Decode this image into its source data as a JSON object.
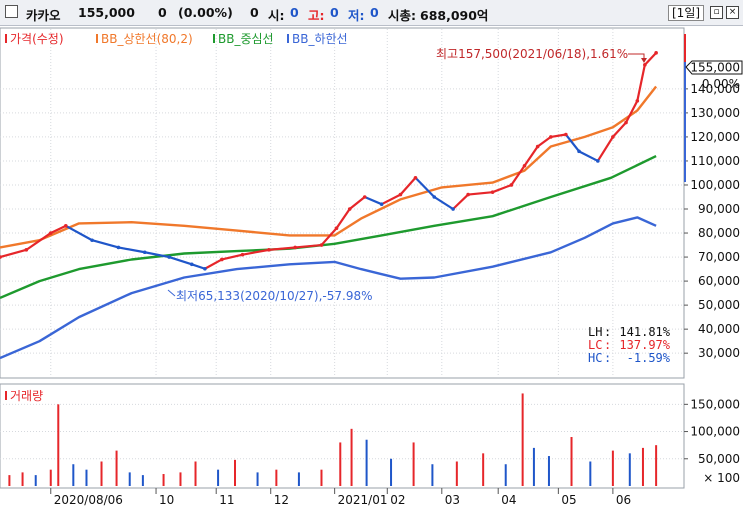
{
  "header": {
    "name": "카카오",
    "price": "155,000",
    "change": "0",
    "change_pct": "(0.00%)",
    "volume_label": "0",
    "open_label": "시:",
    "open_value": "0",
    "high_label": "고:",
    "high_value": "0",
    "low_label": "저:",
    "low_value": "0",
    "mktcap_label": "시총:",
    "mktcap_value": "688,090억",
    "period": "[1일]"
  },
  "legend": {
    "price": "가격(수정)",
    "upper": "BB_상한선(80,2)",
    "middle": "BB_중심선",
    "lower": "BB_하한선",
    "volume": "거래량"
  },
  "annotations": {
    "max": "최고157,500(2021/06/18),1.61%",
    "min": "최저65,133(2020/10/27),-57.98%",
    "current_price": "155,000",
    "current_pct": "0.00%",
    "stats": [
      {
        "label": "LH",
        "value": "141.81%"
      },
      {
        "label": "LC",
        "value": "137.97%"
      },
      {
        "label": "HC",
        "value": "-1.59%"
      }
    ]
  },
  "colors": {
    "up": "#e6262a",
    "down": "#1f56c9",
    "upper_band": "#f0782b",
    "middle_band": "#1e9a2e",
    "lower_band": "#3a66d6",
    "current_marker": "#1f56c9"
  },
  "chart_data": [
    {
      "type": "line",
      "title": "카카오",
      "y_scale": "linear",
      "ylim": [
        23000,
        162000
      ],
      "yticks": [
        30000,
        40000,
        50000,
        60000,
        70000,
        80000,
        90000,
        100000,
        110000,
        120000,
        130000,
        140000
      ],
      "ytick_labels": [
        "30,000",
        "40,000",
        "50,000",
        "60,000",
        "70,000",
        "80,000",
        "90,000",
        "100,000",
        "110,000",
        "120,000",
        "130,000",
        "140,000"
      ],
      "x_labels": [
        {
          "label": "2020/08/06",
          "date": "2020-08-06"
        },
        {
          "label": "10",
          "date": "2020-10-01"
        },
        {
          "label": "11",
          "date": "2020-11-02"
        },
        {
          "label": "12",
          "date": "2020-12-01"
        },
        {
          "label": "2021/01",
          "date": "2021-01-04"
        },
        {
          "label": "02",
          "date": "2021-02-01"
        },
        {
          "label": "03",
          "date": "2021-03-02"
        },
        {
          "label": "04",
          "date": "2021-04-01"
        },
        {
          "label": "05",
          "date": "2021-05-03"
        },
        {
          "label": "06",
          "date": "2021-06-01"
        }
      ],
      "x_range": [
        "2020-07-10",
        "2021-06-25"
      ],
      "series": [
        {
          "name": "가격(수정)",
          "points": [
            [
              "2020-07-10",
              70000
            ],
            [
              "2020-07-24",
              73000
            ],
            [
              "2020-08-06",
              80000
            ],
            [
              "2020-08-14",
              83000
            ],
            [
              "2020-08-28",
              77000
            ],
            [
              "2020-09-11",
              74000
            ],
            [
              "2020-09-25",
              72000
            ],
            [
              "2020-10-08",
              70000
            ],
            [
              "2020-10-20",
              67000
            ],
            [
              "2020-10-27",
              65133
            ],
            [
              "2020-11-05",
              69000
            ],
            [
              "2020-11-16",
              71000
            ],
            [
              "2020-11-30",
              73000
            ],
            [
              "2020-12-14",
              74000
            ],
            [
              "2020-12-28",
              75000
            ],
            [
              "2021-01-05",
              82000
            ],
            [
              "2021-01-12",
              90000
            ],
            [
              "2021-01-20",
              95000
            ],
            [
              "2021-01-29",
              92000
            ],
            [
              "2021-02-08",
              96000
            ],
            [
              "2021-02-16",
              103000
            ],
            [
              "2021-02-26",
              95000
            ],
            [
              "2021-03-08",
              90000
            ],
            [
              "2021-03-16",
              96000
            ],
            [
              "2021-03-29",
              97000
            ],
            [
              "2021-04-08",
              100000
            ],
            [
              "2021-04-15",
              108000
            ],
            [
              "2021-04-22",
              116000
            ],
            [
              "2021-04-29",
              120000
            ],
            [
              "2021-05-07",
              121000
            ],
            [
              "2021-05-14",
              114000
            ],
            [
              "2021-05-24",
              110000
            ],
            [
              "2021-06-01",
              120000
            ],
            [
              "2021-06-08",
              126000
            ],
            [
              "2021-06-14",
              135000
            ],
            [
              "2021-06-18",
              150000
            ],
            [
              "2021-06-24",
              155000
            ]
          ]
        },
        {
          "name": "BB_상한선(80,2)",
          "points": [
            [
              "2020-07-10",
              74000
            ],
            [
              "2020-07-31",
              77000
            ],
            [
              "2020-08-21",
              84000
            ],
            [
              "2020-09-18",
              84500
            ],
            [
              "2020-10-16",
              83000
            ],
            [
              "2020-11-13",
              81000
            ],
            [
              "2020-12-11",
              79000
            ],
            [
              "2021-01-04",
              79000
            ],
            [
              "2021-01-18",
              86000
            ],
            [
              "2021-02-08",
              94000
            ],
            [
              "2021-03-02",
              99000
            ],
            [
              "2021-03-29",
              101000
            ],
            [
              "2021-04-15",
              106000
            ],
            [
              "2021-04-29",
              116000
            ],
            [
              "2021-05-17",
              120000
            ],
            [
              "2021-06-01",
              124000
            ],
            [
              "2021-06-14",
              131000
            ],
            [
              "2021-06-24",
              141000
            ]
          ]
        },
        {
          "name": "BB_중심선",
          "points": [
            [
              "2020-07-10",
              53000
            ],
            [
              "2020-07-31",
              60000
            ],
            [
              "2020-08-21",
              65000
            ],
            [
              "2020-09-18",
              69000
            ],
            [
              "2020-10-16",
              71500
            ],
            [
              "2020-11-13",
              72500
            ],
            [
              "2020-12-11",
              73500
            ],
            [
              "2021-01-04",
              75500
            ],
            [
              "2021-01-29",
              79000
            ],
            [
              "2021-02-26",
              83000
            ],
            [
              "2021-03-29",
              87000
            ],
            [
              "2021-04-29",
              95000
            ],
            [
              "2021-05-31",
              103000
            ],
            [
              "2021-06-24",
              112000
            ]
          ]
        },
        {
          "name": "BB_하한선",
          "points": [
            [
              "2020-07-10",
              28000
            ],
            [
              "2020-07-31",
              35000
            ],
            [
              "2020-08-21",
              45000
            ],
            [
              "2020-09-18",
              55000
            ],
            [
              "2020-10-16",
              61500
            ],
            [
              "2020-11-13",
              65000
            ],
            [
              "2020-12-11",
              67000
            ],
            [
              "2021-01-04",
              68000
            ],
            [
              "2021-01-18",
              65000
            ],
            [
              "2021-02-08",
              61000
            ],
            [
              "2021-02-26",
              61500
            ],
            [
              "2021-03-29",
              66000
            ],
            [
              "2021-04-29",
              72000
            ],
            [
              "2021-05-17",
              78000
            ],
            [
              "2021-06-01",
              84000
            ],
            [
              "2021-06-14",
              86500
            ],
            [
              "2021-06-24",
              83000
            ]
          ]
        }
      ]
    },
    {
      "type": "bar",
      "title": "거래량",
      "ylim": [
        0,
        180000
      ],
      "yticks": [
        50000,
        100000,
        150000
      ],
      "ytick_labels": [
        "50,000",
        "100,000",
        "150,000"
      ],
      "unit_label": "× 100",
      "values_x100": [
        [
          "2020-07-15",
          20000
        ],
        [
          "2020-07-22",
          25000
        ],
        [
          "2020-07-29",
          20000
        ],
        [
          "2020-08-06",
          30000
        ],
        [
          "2020-08-10",
          150000
        ],
        [
          "2020-08-18",
          40000
        ],
        [
          "2020-08-25",
          30000
        ],
        [
          "2020-09-02",
          45000
        ],
        [
          "2020-09-10",
          65000
        ],
        [
          "2020-09-17",
          25000
        ],
        [
          "2020-09-24",
          20000
        ],
        [
          "2020-10-05",
          22000
        ],
        [
          "2020-10-14",
          25000
        ],
        [
          "2020-10-22",
          45000
        ],
        [
          "2020-11-03",
          30000
        ],
        [
          "2020-11-12",
          48000
        ],
        [
          "2020-11-24",
          25000
        ],
        [
          "2020-12-04",
          30000
        ],
        [
          "2020-12-16",
          25000
        ],
        [
          "2020-12-28",
          30000
        ],
        [
          "2021-01-07",
          80000
        ],
        [
          "2021-01-13",
          105000
        ],
        [
          "2021-01-21",
          85000
        ],
        [
          "2021-02-03",
          50000
        ],
        [
          "2021-02-15",
          80000
        ],
        [
          "2021-02-25",
          40000
        ],
        [
          "2021-03-10",
          45000
        ],
        [
          "2021-03-24",
          60000
        ],
        [
          "2021-04-05",
          40000
        ],
        [
          "2021-04-14",
          170000
        ],
        [
          "2021-04-20",
          70000
        ],
        [
          "2021-04-28",
          55000
        ],
        [
          "2021-05-10",
          90000
        ],
        [
          "2021-05-20",
          45000
        ],
        [
          "2021-06-01",
          65000
        ],
        [
          "2021-06-10",
          60000
        ],
        [
          "2021-06-17",
          70000
        ],
        [
          "2021-06-24",
          75000
        ]
      ]
    }
  ]
}
